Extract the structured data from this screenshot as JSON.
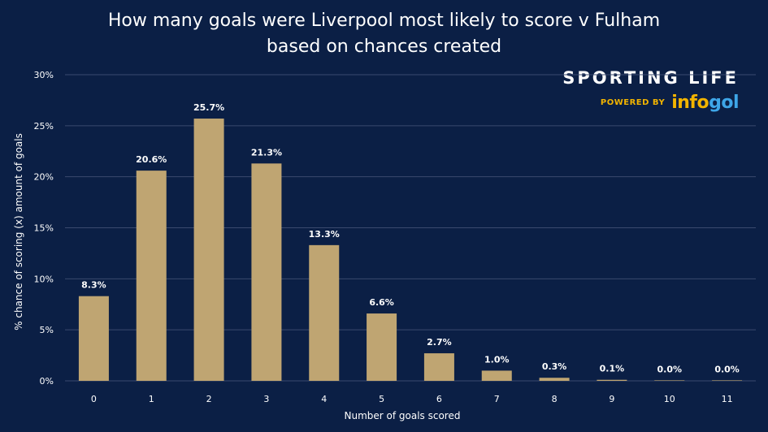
{
  "title_lines": [
    "How many goals were Liverpool most likely to score v Fulham",
    "based on chances created"
  ],
  "brand": {
    "name": "SPORTING LIFE",
    "powered_by": "POWERED BY",
    "logo_part1": "info",
    "logo_part2": "gol"
  },
  "colors": {
    "background": "#0b1f45",
    "bar": "#bfa572",
    "grid": "#3a4a6e",
    "text": "#ffffff"
  },
  "chart_data": {
    "type": "bar",
    "title": "How many goals were Liverpool most likely to score v Fulham based on chances created",
    "xlabel": "Number of goals scored",
    "ylabel": "% chance of scoring (x) amount of goals",
    "categories": [
      "0",
      "1",
      "2",
      "3",
      "4",
      "5",
      "6",
      "7",
      "8",
      "9",
      "10",
      "11"
    ],
    "values": [
      8.3,
      20.6,
      25.7,
      21.3,
      13.3,
      6.6,
      2.7,
      1.0,
      0.3,
      0.1,
      0.0,
      0.0
    ],
    "data_labels": [
      "8.3%",
      "20.6%",
      "25.7%",
      "21.3%",
      "13.3%",
      "6.6%",
      "2.7%",
      "1.0%",
      "0.3%",
      "0.1%",
      "0.0%",
      "0.0%"
    ],
    "ylim": [
      0,
      30
    ],
    "yticks": [
      0,
      5,
      10,
      15,
      20,
      25,
      30
    ],
    "ytick_labels": [
      "0%",
      "5%",
      "10%",
      "15%",
      "20%",
      "25%",
      "30%"
    ],
    "grid": true,
    "legend": "none"
  }
}
